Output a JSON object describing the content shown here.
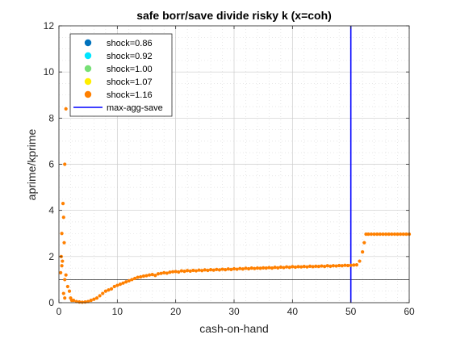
{
  "chart_data": {
    "type": "scatter",
    "title": "safe borr/save divide risky k (x=coh)",
    "xlabel": "cash-on-hand",
    "ylabel": "aprime/kprime",
    "xlim": [
      0,
      60
    ],
    "ylim": [
      0,
      12
    ],
    "x_ticks": [
      "0",
      "10",
      "20",
      "30",
      "40",
      "50",
      "60"
    ],
    "y_ticks": [
      "0",
      "2",
      "4",
      "6",
      "8",
      "10",
      "12"
    ],
    "grid": true,
    "minor_grid": true,
    "legend_position": "top-left",
    "reference_lines": [
      {
        "orientation": "horizontal",
        "value": 1,
        "color": "#000000"
      },
      {
        "orientation": "vertical",
        "value": 50,
        "color": "#0000ff",
        "name": "max-agg-save"
      }
    ],
    "series": [
      {
        "name": "shock=0.86",
        "color": "#0072bd",
        "points": []
      },
      {
        "name": "shock=0.92",
        "color": "#00e5ff",
        "points": []
      },
      {
        "name": "shock=1.00",
        "color": "#77e076",
        "points": []
      },
      {
        "name": "shock=1.07",
        "color": "#ffee00",
        "points": []
      },
      {
        "name": "shock=1.16",
        "color": "#ff8000",
        "points": [
          [
            0.3,
            1.3
          ],
          [
            0.4,
            2.0
          ],
          [
            0.5,
            1.6
          ],
          [
            0.5,
            3.0
          ],
          [
            0.6,
            1.8
          ],
          [
            0.7,
            4.3
          ],
          [
            0.8,
            3.7
          ],
          [
            0.9,
            2.6
          ],
          [
            1.0,
            6.0
          ],
          [
            1.0,
            1.0
          ],
          [
            1.2,
            8.4
          ],
          [
            1.2,
            1.2
          ],
          [
            0.8,
            0.4
          ],
          [
            1.0,
            0.2
          ],
          [
            1.5,
            0.7
          ],
          [
            2.0,
            0.2
          ],
          [
            2.5,
            0.1
          ],
          [
            3.0,
            0.05
          ],
          [
            3.5,
            0.03
          ],
          [
            1.8,
            0.5
          ],
          [
            2.2,
            0.1
          ],
          [
            4.0,
            0.02
          ],
          [
            4.5,
            0.03
          ],
          [
            5.0,
            0.05
          ],
          [
            5.5,
            0.1
          ],
          [
            6.0,
            0.15
          ],
          [
            6.5,
            0.2
          ],
          [
            7.0,
            0.3
          ],
          [
            7.5,
            0.4
          ],
          [
            8.0,
            0.5
          ],
          [
            8.5,
            0.55
          ],
          [
            9.0,
            0.6
          ],
          [
            9.5,
            0.7
          ],
          [
            10.0,
            0.75
          ],
          [
            10.5,
            0.8
          ],
          [
            11.0,
            0.85
          ],
          [
            11.5,
            0.9
          ],
          [
            12.0,
            0.95
          ],
          [
            12.5,
            1.0
          ],
          [
            13.0,
            1.05
          ],
          [
            13.5,
            1.1
          ],
          [
            14.0,
            1.12
          ],
          [
            14.5,
            1.15
          ],
          [
            15.0,
            1.17
          ],
          [
            15.5,
            1.2
          ],
          [
            16.0,
            1.22
          ],
          [
            16.5,
            1.18
          ],
          [
            17.0,
            1.25
          ],
          [
            17.5,
            1.27
          ],
          [
            18.0,
            1.3
          ],
          [
            18.5,
            1.28
          ],
          [
            19.0,
            1.32
          ],
          [
            19.5,
            1.34
          ],
          [
            20.0,
            1.35
          ],
          [
            20.5,
            1.33
          ],
          [
            21.0,
            1.38
          ],
          [
            21.5,
            1.36
          ],
          [
            22.0,
            1.39
          ],
          [
            22.5,
            1.37
          ],
          [
            23.0,
            1.4
          ],
          [
            23.5,
            1.38
          ],
          [
            24.0,
            1.41
          ],
          [
            24.5,
            1.39
          ],
          [
            25.0,
            1.42
          ],
          [
            25.5,
            1.4
          ],
          [
            26.0,
            1.43
          ],
          [
            26.5,
            1.41
          ],
          [
            27.0,
            1.44
          ],
          [
            27.5,
            1.42
          ],
          [
            28.0,
            1.45
          ],
          [
            28.5,
            1.43
          ],
          [
            29.0,
            1.46
          ],
          [
            29.5,
            1.44
          ],
          [
            30.0,
            1.47
          ],
          [
            30.5,
            1.45
          ],
          [
            31.0,
            1.48
          ],
          [
            31.5,
            1.46
          ],
          [
            32.0,
            1.49
          ],
          [
            32.5,
            1.47
          ],
          [
            33.0,
            1.5
          ],
          [
            33.5,
            1.48
          ],
          [
            34.0,
            1.5
          ],
          [
            34.5,
            1.49
          ],
          [
            35.0,
            1.51
          ],
          [
            35.5,
            1.5
          ],
          [
            36.0,
            1.52
          ],
          [
            36.5,
            1.5
          ],
          [
            37.0,
            1.53
          ],
          [
            37.5,
            1.51
          ],
          [
            38.0,
            1.54
          ],
          [
            38.5,
            1.52
          ],
          [
            39.0,
            1.55
          ],
          [
            39.5,
            1.53
          ],
          [
            40.0,
            1.56
          ],
          [
            40.5,
            1.54
          ],
          [
            41.0,
            1.56
          ],
          [
            41.5,
            1.55
          ],
          [
            42.0,
            1.57
          ],
          [
            42.5,
            1.55
          ],
          [
            43.0,
            1.58
          ],
          [
            43.5,
            1.56
          ],
          [
            44.0,
            1.58
          ],
          [
            44.5,
            1.57
          ],
          [
            45.0,
            1.59
          ],
          [
            45.5,
            1.57
          ],
          [
            46.0,
            1.6
          ],
          [
            46.5,
            1.58
          ],
          [
            47.0,
            1.6
          ],
          [
            47.5,
            1.59
          ],
          [
            48.0,
            1.61
          ],
          [
            48.5,
            1.6
          ],
          [
            49.0,
            1.62
          ],
          [
            49.5,
            1.61
          ],
          [
            50.0,
            1.62
          ],
          [
            50.5,
            1.63
          ],
          [
            51.0,
            1.64
          ],
          [
            51.5,
            1.8
          ],
          [
            52.0,
            2.2
          ],
          [
            52.3,
            2.6
          ],
          [
            52.6,
            2.97
          ],
          [
            53.0,
            2.97
          ],
          [
            53.5,
            2.97
          ],
          [
            54.0,
            2.97
          ],
          [
            54.5,
            2.97
          ],
          [
            55.0,
            2.97
          ],
          [
            55.5,
            2.97
          ],
          [
            56.0,
            2.97
          ],
          [
            56.5,
            2.97
          ],
          [
            57.0,
            2.97
          ],
          [
            57.5,
            2.97
          ],
          [
            58.0,
            2.97
          ],
          [
            58.5,
            2.97
          ],
          [
            59.0,
            2.97
          ],
          [
            59.5,
            2.97
          ],
          [
            60.0,
            2.97
          ]
        ]
      }
    ],
    "legend": [
      "shock=0.86",
      "shock=0.92",
      "shock=1.00",
      "shock=1.07",
      "shock=1.16",
      "max-agg-save"
    ]
  }
}
